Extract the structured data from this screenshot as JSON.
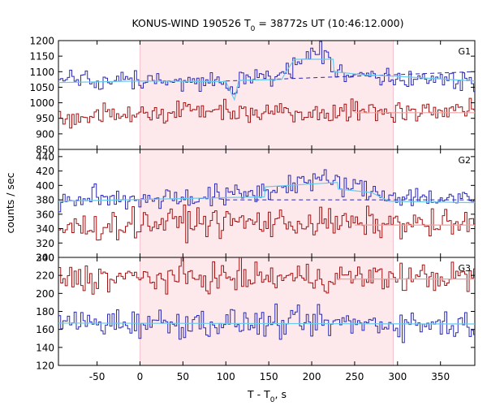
{
  "chart_data": {
    "type": "line",
    "title_main": "KONUS-WIND 190526 T",
    "title_sub": "0",
    "title_rest": " = 38772s UT (10:46:12.000)",
    "xlabel_main": "T - T",
    "xlabel_sub": "0",
    "xlabel_rest": ", s",
    "ylabel": "counts / sec",
    "xlim": [
      -95,
      390
    ],
    "xticks": [
      -50,
      0,
      50,
      100,
      150,
      200,
      250,
      300,
      350
    ],
    "shaded_interval": [
      0,
      295
    ],
    "colors": {
      "blue": "#2a2ab4",
      "red": "#a01414",
      "fit_light": "#66ccee",
      "fit_pink": "#f0a0a0",
      "dashed": "#2a2ab4",
      "shade": "#fde8ec"
    },
    "panels": [
      {
        "name": "G1",
        "ylim": [
          850,
          1200
        ],
        "yticks": [
          850,
          900,
          950,
          1000,
          1050,
          1100,
          1150,
          1200
        ],
        "series": [
          {
            "color": "blue",
            "base": 1070,
            "noise": 16,
            "bumps": [
              [
                -95,
                1075
              ],
              [
                100,
                1070
              ],
              [
                110,
                1025
              ],
              [
                115,
                1070
              ],
              [
                160,
                1090
              ],
              [
                180,
                1120
              ],
              [
                195,
                1160
              ],
              [
                215,
                1165
              ],
              [
                225,
                1100
              ],
              [
                280,
                1090
              ],
              [
                300,
                1080
              ],
              [
                390,
                1070
              ]
            ],
            "fit": [
              [
                -95,
                1065
              ],
              [
                0,
                1070
              ],
              [
                100,
                1068
              ],
              [
                110,
                1010
              ],
              [
                115,
                1072
              ],
              [
                165,
                1075
              ],
              [
                170,
                1100
              ],
              [
                180,
                1140
              ],
              [
                225,
                1140
              ],
              [
                226,
                1100
              ],
              [
                260,
                1090
              ],
              [
                300,
                1085
              ],
              [
                390,
                1070
              ]
            ]
          },
          {
            "color": "red",
            "base": 965,
            "noise": 18,
            "bumps": [
              [
                -95,
                950
              ],
              [
                0,
                965
              ],
              [
                60,
                975
              ],
              [
                200,
                972
              ],
              [
                390,
                975
              ]
            ],
            "fit": [
              [
                250,
                968
              ],
              [
                390,
                968
              ]
            ]
          }
        ],
        "dashed": [
          [
            100,
            1070
          ],
          [
            390,
            1100
          ]
        ]
      },
      {
        "name": "G2",
        "ylim": [
          300,
          450
        ],
        "yticks": [
          300,
          320,
          340,
          360,
          380,
          400,
          420,
          440
        ],
        "series": [
          {
            "color": "blue",
            "base": 383,
            "noise": 8,
            "bumps": [
              [
                -95,
                380
              ],
              [
                100,
                385
              ],
              [
                150,
                392
              ],
              [
                180,
                405
              ],
              [
                210,
                408
              ],
              [
                240,
                400
              ],
              [
                280,
                388
              ],
              [
                390,
                378
              ]
            ],
            "fit": [
              [
                -95,
                378
              ],
              [
                100,
                383
              ],
              [
                145,
                384
              ],
              [
                146,
                398
              ],
              [
                200,
                402
              ],
              [
                230,
                404
              ],
              [
                231,
                395
              ],
              [
                270,
                390
              ],
              [
                290,
                378
              ],
              [
                390,
                376
              ]
            ]
          },
          {
            "color": "red",
            "base": 345,
            "noise": 10,
            "bumps": [
              [
                -95,
                340
              ],
              [
                50,
                350
              ],
              [
                390,
                345
              ]
            ],
            "fit": [
              [
                250,
                345
              ],
              [
                390,
                345
              ]
            ]
          }
        ],
        "dashed": [
          [
            100,
            380
          ],
          [
            390,
            380
          ]
        ]
      },
      {
        "name": "G3",
        "ylim": [
          120,
          240
        ],
        "yticks": [
          120,
          140,
          160,
          180,
          200,
          220,
          240
        ],
        "series": [
          {
            "color": "red",
            "base": 217,
            "noise": 8,
            "bumps": [
              [
                -95,
                217
              ],
              [
                390,
                218
              ]
            ],
            "fit": [
              [
                230,
                216
              ],
              [
                390,
                216
              ]
            ]
          },
          {
            "color": "blue",
            "base": 168,
            "noise": 8,
            "bumps": [
              [
                -95,
                168
              ],
              [
                390,
                166
              ]
            ],
            "fit": [
              [
                -95,
                167
              ],
              [
                390,
                166
              ]
            ]
          }
        ],
        "dashed": []
      }
    ]
  }
}
